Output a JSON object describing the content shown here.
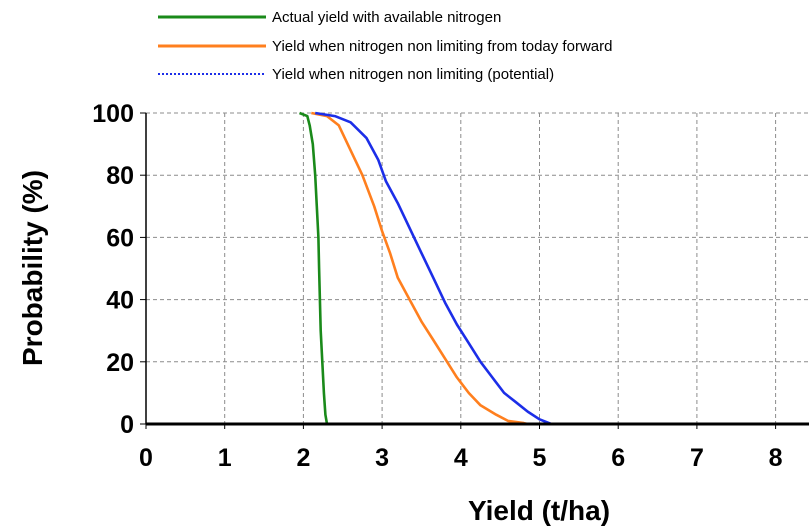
{
  "chart_data": {
    "type": "line",
    "title": "",
    "xlabel": "Yield (t/ha)",
    "ylabel": "Probability (%)",
    "xlim": [
      0,
      8.3
    ],
    "ylim": [
      0,
      100
    ],
    "xticks": [
      "0",
      "1",
      "2",
      "3",
      "4",
      "5",
      "6",
      "7",
      "8"
    ],
    "yticks": [
      "0",
      "20",
      "40",
      "60",
      "80",
      "100"
    ],
    "grid": true,
    "legend_position": "top",
    "series": [
      {
        "name": "Actual yield with available nitrogen",
        "color": "#1a8a1a",
        "style": "solid",
        "x": [
          1.95,
          2.05,
          2.08,
          2.12,
          2.15,
          2.17,
          2.19,
          2.2,
          2.21,
          2.22,
          2.24,
          2.26,
          2.28,
          2.3
        ],
        "y": [
          100,
          99,
          96,
          90,
          80,
          70,
          60,
          50,
          40,
          30,
          20,
          10,
          3,
          0
        ]
      },
      {
        "name": "Yield when nitrogen non limiting from today forward",
        "color": "#ff7f1e",
        "style": "solid",
        "x": [
          2.1,
          2.3,
          2.45,
          2.6,
          2.75,
          2.9,
          3.0,
          3.1,
          3.2,
          3.35,
          3.5,
          3.65,
          3.8,
          3.95,
          4.1,
          4.25,
          4.45,
          4.6,
          4.8,
          4.85
        ],
        "y": [
          100,
          99,
          96,
          88,
          80,
          70,
          62,
          55,
          47,
          40,
          33,
          27,
          21,
          15,
          10,
          6,
          3,
          1,
          0.3,
          0
        ]
      },
      {
        "name": "Yield when nitrogen non limiting (potential)",
        "color": "#1c2ee8",
        "style": "dotted",
        "x": [
          2.15,
          2.4,
          2.6,
          2.8,
          2.95,
          3.05,
          3.2,
          3.35,
          3.5,
          3.65,
          3.8,
          3.95,
          4.1,
          4.25,
          4.4,
          4.55,
          4.7,
          4.85,
          5.0,
          5.15
        ],
        "y": [
          100,
          99,
          97,
          92,
          85,
          78,
          71,
          63,
          55,
          47,
          39,
          32,
          26,
          20,
          15,
          10,
          7,
          4,
          1.5,
          0
        ]
      }
    ]
  }
}
